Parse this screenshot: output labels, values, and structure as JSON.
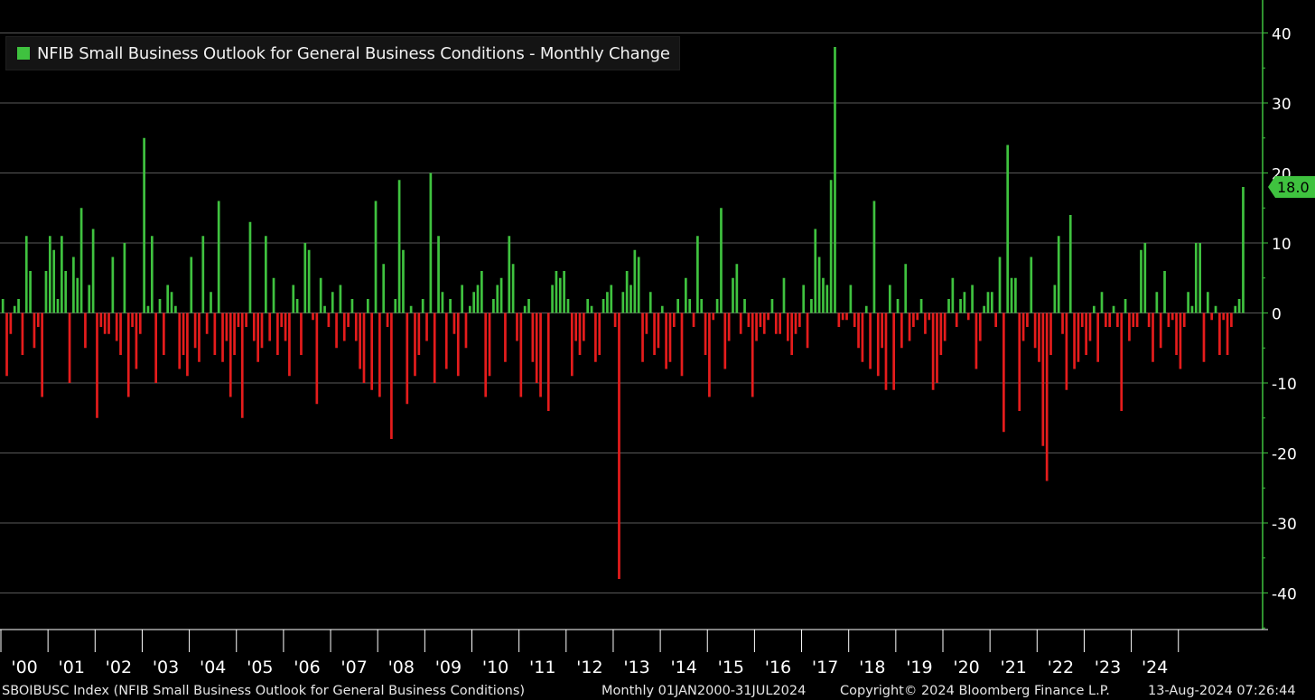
{
  "chart_data": {
    "type": "bar",
    "title": "",
    "legend": [
      {
        "name": "NFIB Small Business Outlook for General Business Conditions - Monthly Change",
        "color": "#3fc23f"
      }
    ],
    "legend_position": "top-left",
    "y_axis_position": "right",
    "ylim": [
      -45,
      45
    ],
    "yticks": [
      40,
      30,
      20,
      10,
      0,
      -10,
      -20,
      -30,
      -40
    ],
    "xticks": [
      "'00",
      "'01",
      "'02",
      "'03",
      "'04",
      "'05",
      "'06",
      "'07",
      "'08",
      "'09",
      "'10",
      "'11",
      "'12",
      "'13",
      "'14",
      "'15",
      "'16",
      "'17",
      "'18",
      "'19",
      "'20",
      "'21",
      "'22",
      "'23",
      "'24"
    ],
    "grid": true,
    "positive_color": "#3fc23f",
    "negative_color": "#e51c1c",
    "last_value_label": "18.0",
    "x_start": "2000-01",
    "values": [
      2,
      -9,
      -3,
      1,
      2,
      -6,
      11,
      6,
      -5,
      -2,
      -12,
      6,
      11,
      9,
      2,
      11,
      6,
      -10,
      8,
      5,
      15,
      -5,
      4,
      12,
      -15,
      -2,
      -3,
      -3,
      8,
      -4,
      -6,
      10,
      -12,
      -2,
      -8,
      -3,
      25,
      1,
      11,
      -10,
      2,
      -6,
      4,
      3,
      1,
      -8,
      -6,
      -9,
      8,
      -5,
      -7,
      11,
      -3,
      3,
      -6,
      16,
      -7,
      -4,
      -12,
      -6,
      -2,
      -15,
      -2,
      13,
      -4,
      -7,
      -5,
      11,
      -4,
      5,
      -6,
      -2,
      -4,
      -9,
      4,
      2,
      -6,
      10,
      9,
      -1,
      -13,
      5,
      1,
      -2,
      3,
      -5,
      4,
      -4,
      -2,
      2,
      -4,
      -8,
      -10,
      2,
      -11,
      16,
      -12,
      7,
      -2,
      -18,
      2,
      19,
      9,
      -13,
      1,
      -9,
      -6,
      2,
      -4,
      20,
      -10,
      11,
      3,
      -8,
      2,
      -3,
      -9,
      4,
      -5,
      1,
      3,
      4,
      6,
      -12,
      -9,
      2,
      4,
      5,
      -7,
      11,
      7,
      -4,
      -12,
      1,
      2,
      -7,
      -10,
      -12,
      0,
      -14,
      4,
      6,
      5,
      6,
      2,
      -9,
      -4,
      -6,
      -4,
      2,
      1,
      -7,
      -6,
      2,
      3,
      4,
      -2,
      -38,
      3,
      6,
      4,
      9,
      8,
      -7,
      -3,
      3,
      -6,
      -5,
      1,
      -8,
      -7,
      -2,
      2,
      -9,
      5,
      2,
      -2,
      11,
      2,
      -6,
      -12,
      -1,
      2,
      15,
      -8,
      -4,
      5,
      7,
      -3,
      2,
      -2,
      -12,
      -4,
      -2,
      -3,
      -1,
      2,
      -3,
      -3,
      5,
      -4,
      -6,
      -3,
      -2,
      4,
      -5,
      2,
      12,
      8,
      5,
      4,
      19,
      38,
      -2,
      -1,
      -1,
      4,
      -2,
      -5,
      -7,
      1,
      -8,
      16,
      -9,
      -5,
      -11,
      4,
      -11,
      2,
      -5,
      7,
      -4,
      -2,
      -1,
      2,
      -3,
      -1,
      -11,
      -10,
      -6,
      -4,
      2,
      5,
      -2,
      2,
      3,
      -1,
      4,
      -8,
      -4,
      1,
      3,
      3,
      -2,
      8,
      -17,
      24,
      5,
      5,
      -14,
      -4,
      -2,
      8,
      -5,
      -7,
      -19,
      -24,
      -6,
      4,
      11,
      -3,
      -11,
      14,
      -8,
      -7,
      -2,
      -6,
      -4,
      1,
      -7,
      3,
      -2,
      -2,
      1,
      -2,
      -14,
      2,
      -4,
      -2,
      -2,
      9,
      10,
      -2,
      -7,
      3,
      -5,
      6,
      -2,
      -1,
      -6,
      -8,
      -2,
      3,
      1,
      10,
      10,
      -7,
      3,
      -1,
      1,
      -6,
      -1,
      -6,
      -2,
      1,
      2,
      18
    ]
  },
  "footer": {
    "ticker": "SBOIBUSC Index (NFIB Small Business Outlook for General Business Conditions)",
    "range": "Monthly 01JAN2000-31JUL2024",
    "copyright": "Copyright© 2024 Bloomberg Finance L.P.",
    "timestamp": "13-Aug-2024 07:26:44"
  }
}
